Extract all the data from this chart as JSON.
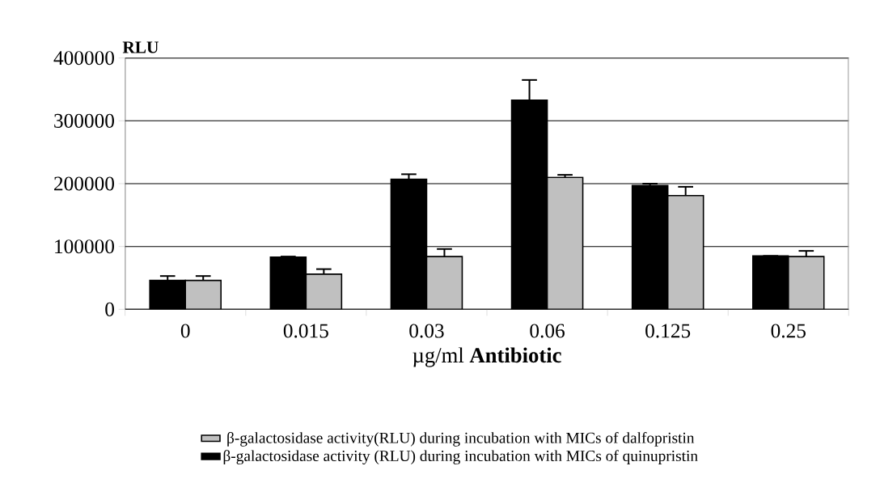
{
  "chart_data": {
    "type": "bar",
    "categories": [
      "0",
      "0.015",
      "0.03",
      "0.06",
      "0.125",
      "0.25"
    ],
    "xlabel": "µg/ml **Antibiotic**",
    "ylabel": "**RLU**",
    "series": [
      {
        "name": "β-galactosidase activity (RLU) during incubation with MICs of quinupristin",
        "color": "#000000",
        "values": [
          46000,
          83000,
          207000,
          333000,
          197000,
          85000
        ],
        "errors": [
          7000,
          1000,
          8000,
          32000,
          3000,
          null
        ]
      },
      {
        "name": "β-galactosidase activity(RLU) during incubation with MICs of dalfopristin",
        "color": "#c0c0c0",
        "values": [
          46000,
          56000,
          84000,
          210000,
          181000,
          84000
        ],
        "errors": [
          7000,
          8000,
          12000,
          4000,
          14000,
          9000
        ]
      }
    ],
    "ylim": [
      0,
      400000
    ],
    "yticks": [
      0,
      100000,
      200000,
      300000,
      400000
    ],
    "grid": "y",
    "legend": "bottom"
  }
}
